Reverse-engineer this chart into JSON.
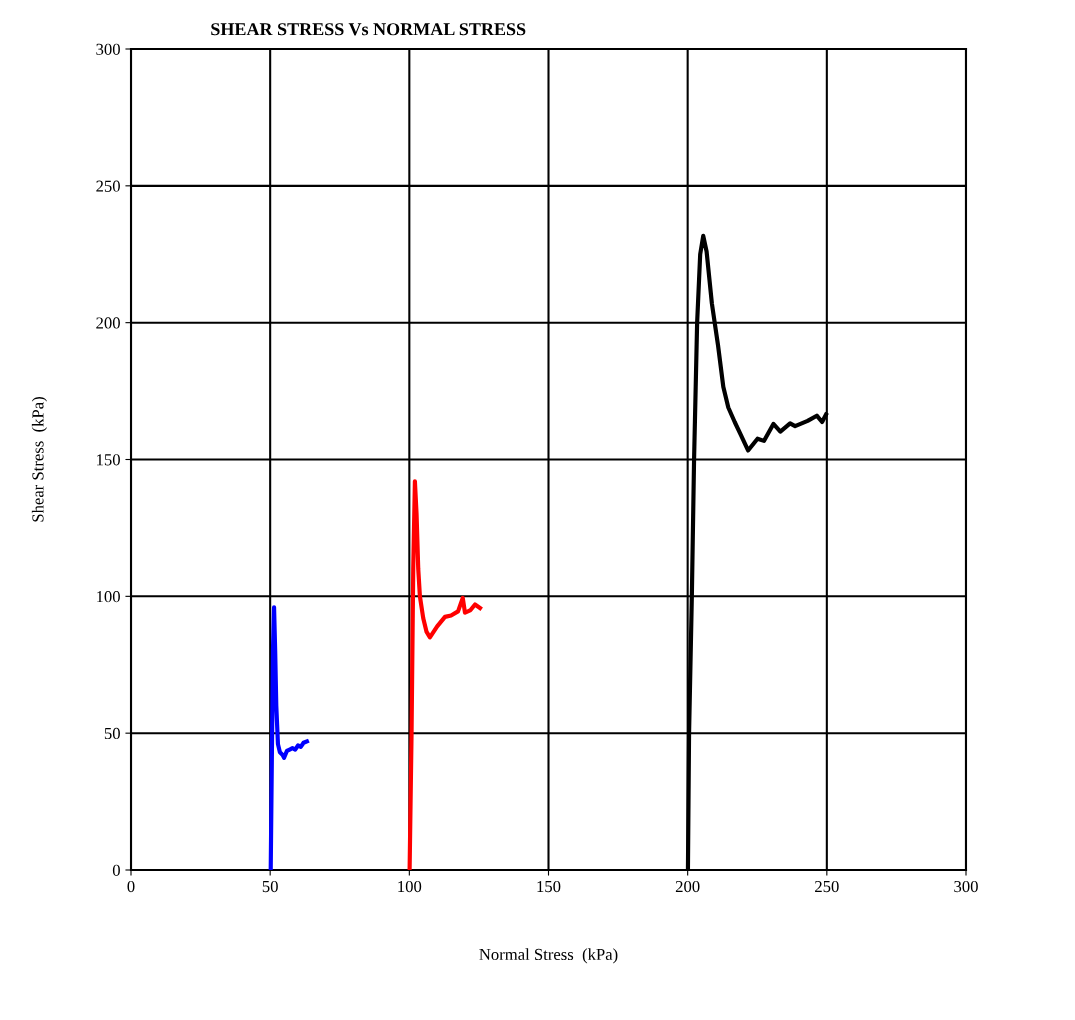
{
  "chart_data": {
    "type": "line",
    "title": "SHEAR STRESS Vs NORMAL STRESS",
    "xlabel": "Normal Stress  (kPa)",
    "ylabel": "Shear Stress  (kPa)",
    "xlim": [
      0,
      300
    ],
    "ylim": [
      0,
      300
    ],
    "xticks": [
      0,
      50,
      100,
      150,
      200,
      250,
      300
    ],
    "yticks": [
      0,
      50,
      100,
      150,
      200,
      250,
      300
    ],
    "grid": true,
    "marker": "none",
    "line_style": "solid",
    "series": [
      {
        "color": "#0000ff",
        "x": [
          50.2,
          50.6,
          51,
          51.4,
          51.8,
          52.2,
          52.8,
          53.5,
          54.5,
          55,
          56,
          57,
          58,
          59,
          60,
          61,
          62,
          63.2
        ],
        "values": [
          0,
          40,
          80,
          96,
          80,
          60,
          46,
          43,
          42,
          41,
          43.5,
          44,
          44.5,
          44,
          45.5,
          45,
          46.5,
          47
        ]
      },
      {
        "color": "#ff0000",
        "x": [
          100.1,
          100.8,
          101.4,
          102,
          102.6,
          103.2,
          103.8,
          105,
          106.2,
          107.4,
          110,
          112.8,
          115,
          117.5,
          119.2,
          120,
          122,
          123.6,
          125.4
        ],
        "values": [
          0,
          50,
          110,
          142,
          130,
          110,
          100,
          92,
          87,
          85,
          89,
          92.5,
          93,
          94.5,
          99.4,
          94,
          95,
          97,
          95.7
        ]
      },
      {
        "color": "#000000",
        "x": [
          200.1,
          200.5,
          201.5,
          202.3,
          203.4,
          204.5,
          205.6,
          206.8,
          208.7,
          210.9,
          212.8,
          214.6,
          216.9,
          219.1,
          221.7,
          225.1,
          227.4,
          230.8,
          233.3,
          236.8,
          238.6,
          243.1,
          246.4,
          248.3,
          249.7
        ],
        "values": [
          0,
          50,
          100,
          150,
          200,
          225,
          231.7,
          226,
          207,
          191.8,
          176.6,
          169,
          163.7,
          159,
          153.3,
          157.6,
          156.8,
          163,
          160.2,
          163.2,
          162.2,
          164.1,
          166,
          163.7,
          166.4
        ]
      }
    ]
  }
}
